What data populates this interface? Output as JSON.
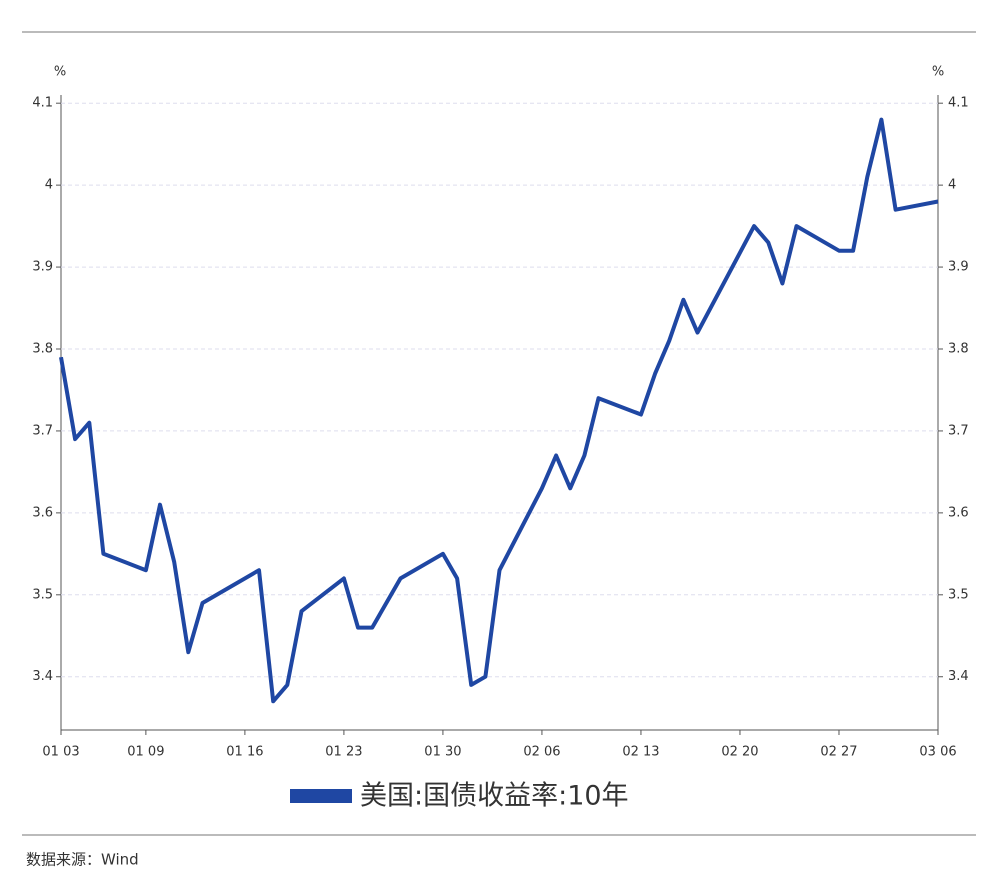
{
  "chart_data": {
    "type": "line",
    "y_unit": "%",
    "x": [
      "01 03",
      "01 04",
      "01 05",
      "01 06",
      "01 09",
      "01 10",
      "01 11",
      "01 12",
      "01 13",
      "01 17",
      "01 18",
      "01 19",
      "01 20",
      "01 23",
      "01 24",
      "01 25",
      "01 27",
      "01 30",
      "01 31",
      "02 01",
      "02 02",
      "02 03",
      "02 06",
      "02 07",
      "02 08",
      "02 09",
      "02 10",
      "02 13",
      "02 14",
      "02 15",
      "02 16",
      "02 17",
      "02 21",
      "02 22",
      "02 23",
      "02 24",
      "02 27",
      "02 28",
      "03 01",
      "03 02",
      "03 03",
      "03 06"
    ],
    "series": [
      {
        "name": "美国:国债收益率:10年",
        "color": "#1f47a3",
        "values": [
          3.79,
          3.69,
          3.71,
          3.55,
          3.53,
          3.61,
          3.54,
          3.43,
          3.49,
          3.53,
          3.37,
          3.39,
          3.48,
          3.52,
          3.46,
          3.46,
          3.52,
          3.55,
          3.52,
          3.39,
          3.4,
          3.53,
          3.63,
          3.67,
          3.63,
          3.67,
          3.74,
          3.72,
          3.77,
          3.81,
          3.86,
          3.82,
          3.95,
          3.93,
          3.88,
          3.95,
          3.92,
          3.92,
          4.01,
          4.08,
          3.97,
          3.98
        ]
      }
    ],
    "xticks": [
      "01 03",
      "01 09",
      "01 16",
      "01 23",
      "01 30",
      "02 06",
      "02 13",
      "02 20",
      "02 27",
      "03 06"
    ],
    "ylim": [
      3.335,
      4.11
    ],
    "yticks": [
      3.4,
      3.5,
      3.6,
      3.7,
      3.8,
      3.9,
      4,
      4.1
    ],
    "grid": true,
    "source": "数据来源：Wind"
  }
}
